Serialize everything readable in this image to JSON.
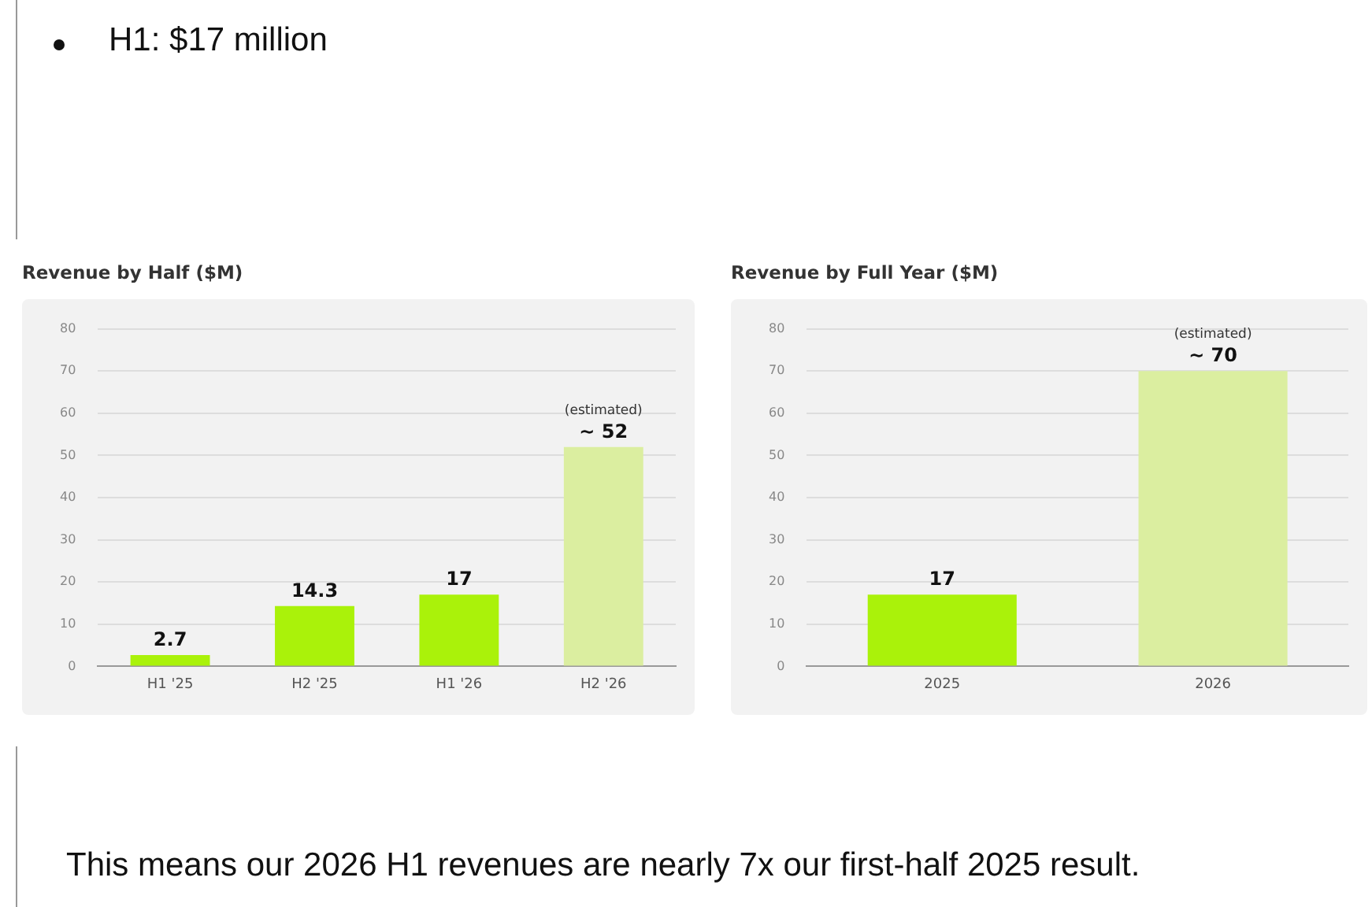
{
  "chart_data": [
    {
      "type": "bar",
      "title": "Revenue by Half ($M)",
      "categories": [
        "H1 '25",
        "H2 '25",
        "H1 '26",
        "H2 '26"
      ],
      "values": [
        2.7,
        14.3,
        17,
        52
      ],
      "colors": [
        "#aaf20a",
        "#aaf20a",
        "#aaf20a",
        "#dbeea0"
      ],
      "ylim": [
        0,
        80
      ],
      "yticks": [
        0,
        10,
        20,
        30,
        40,
        50,
        60,
        70,
        80
      ],
      "grid": "y",
      "value_labels": [
        "2.7",
        "14.3",
        "17",
        "~ 52"
      ],
      "annotations": [
        "H1: $17 million",
        {
          "text": "(estimated)",
          "x": "H2 '26",
          "y": 52
        }
      ]
    },
    {
      "type": "bar",
      "title": "Revenue by Full Year ($M)",
      "categories": [
        "2025",
        "2026"
      ],
      "values": [
        17,
        70
      ],
      "colors": [
        "#aaf20a",
        "#dbeea0"
      ],
      "ylim": [
        0,
        80
      ],
      "yticks": [
        0,
        10,
        20,
        30,
        40,
        50,
        60,
        70,
        80
      ],
      "grid": "y",
      "value_labels": [
        "17",
        "~ 70"
      ],
      "annotations": [
        {
          "text": "(estimated)",
          "x": "2026",
          "y": 70
        },
        "This means our 2026 H1 revenues are nearly 7x our first-half 2025 result."
      ]
    }
  ]
}
